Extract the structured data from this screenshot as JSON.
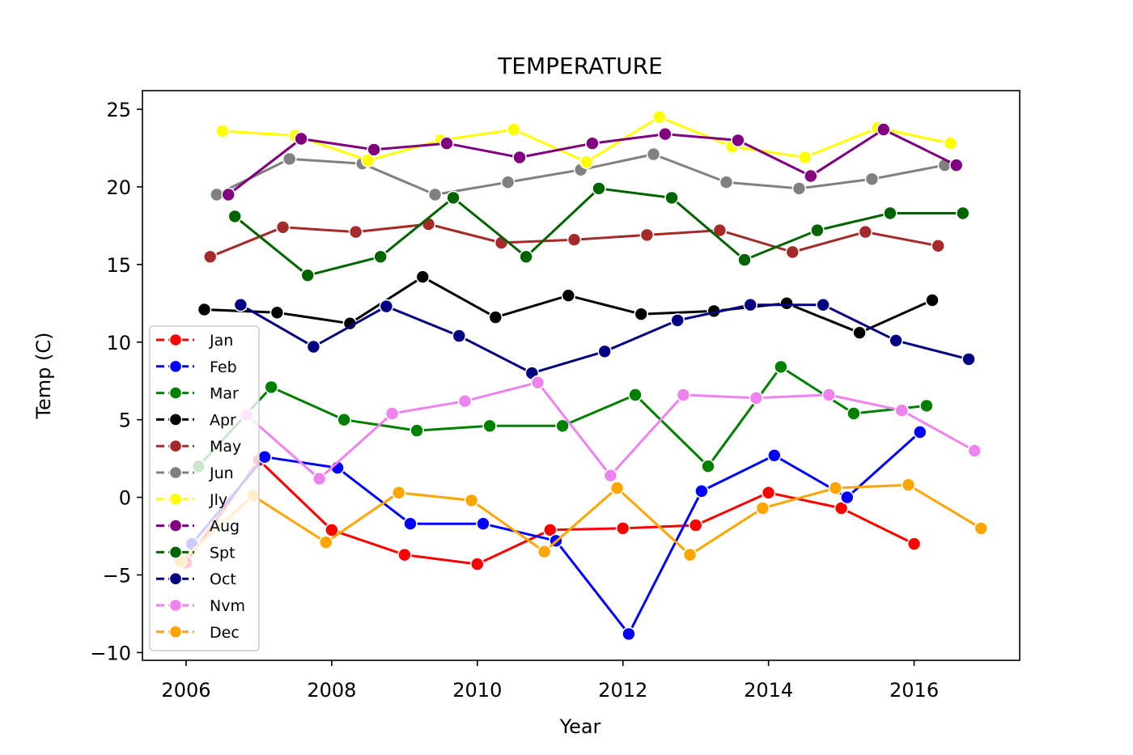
{
  "chart_data": {
    "type": "line",
    "title": "TEMPERATURE",
    "xlabel": "Year",
    "ylabel": "Temp (C)",
    "xlim": [
      2005.4,
      2017.45
    ],
    "ylim": [
      -10.5,
      26.2
    ],
    "xticks": [
      2006,
      2008,
      2010,
      2012,
      2014,
      2016
    ],
    "yticks": [
      -10,
      -5,
      0,
      5,
      10,
      15,
      20,
      25
    ],
    "ytick_labels": [
      "−10",
      "−5",
      "0",
      "5",
      "10",
      "15",
      "20",
      "25"
    ],
    "grid": false,
    "legend_position": "lower-left",
    "series": [
      {
        "name": "Jan",
        "color": "#ff0000",
        "x": [
          2006.0,
          2007.0,
          2008.0,
          2009.0,
          2010.0,
          2011.0,
          2012.0,
          2013.0,
          2014.0,
          2015.0,
          2016.0
        ],
        "y": [
          -4.2,
          2.4,
          -2.1,
          -3.7,
          -4.3,
          -2.1,
          -2.0,
          -1.8,
          0.3,
          -0.7,
          -3.0
        ]
      },
      {
        "name": "Feb",
        "color": "#0000ff",
        "x": [
          2006.08,
          2007.08,
          2008.08,
          2009.08,
          2010.08,
          2011.08,
          2012.08,
          2013.08,
          2014.08,
          2015.08,
          2016.08
        ],
        "y": [
          -3.0,
          2.6,
          1.9,
          -1.7,
          -1.7,
          -2.8,
          -8.8,
          0.4,
          2.7,
          0.0,
          4.2
        ]
      },
      {
        "name": "Mar",
        "color": "#008000",
        "x": [
          2006.17,
          2007.17,
          2008.17,
          2009.17,
          2010.17,
          2011.17,
          2012.17,
          2013.17,
          2014.17,
          2015.17,
          2016.17
        ],
        "y": [
          2.0,
          7.1,
          5.0,
          4.3,
          4.6,
          4.6,
          6.6,
          2.0,
          8.4,
          5.4,
          5.9
        ]
      },
      {
        "name": "Apr",
        "color": "#000000",
        "x": [
          2006.25,
          2007.25,
          2008.25,
          2009.25,
          2010.25,
          2011.25,
          2012.25,
          2013.25,
          2014.25,
          2015.25,
          2016.25
        ],
        "y": [
          12.1,
          11.9,
          11.2,
          14.2,
          11.6,
          13.0,
          11.8,
          12.0,
          12.5,
          10.6,
          12.7
        ]
      },
      {
        "name": "May",
        "color": "#a52a2a",
        "x": [
          2006.33,
          2007.33,
          2008.33,
          2009.33,
          2010.33,
          2011.33,
          2012.33,
          2013.33,
          2014.33,
          2015.33,
          2016.33
        ],
        "y": [
          15.5,
          17.4,
          17.1,
          17.6,
          16.4,
          16.6,
          16.9,
          17.2,
          15.8,
          17.1,
          16.2
        ]
      },
      {
        "name": "Jun",
        "color": "#808080",
        "x": [
          2006.42,
          2007.42,
          2008.42,
          2009.42,
          2010.42,
          2011.42,
          2012.42,
          2013.42,
          2014.42,
          2015.42,
          2016.42
        ],
        "y": [
          19.5,
          21.8,
          21.5,
          19.5,
          20.3,
          21.1,
          22.1,
          20.3,
          19.9,
          20.5,
          21.4
        ]
      },
      {
        "name": "Jly",
        "color": "#ffff00",
        "x": [
          2006.5,
          2007.5,
          2008.5,
          2009.5,
          2010.5,
          2011.5,
          2012.5,
          2013.5,
          2014.5,
          2015.5,
          2016.5
        ],
        "y": [
          23.6,
          23.3,
          21.7,
          23.0,
          23.7,
          21.6,
          24.5,
          22.6,
          21.9,
          23.8,
          22.8
        ]
      },
      {
        "name": "Aug",
        "color": "#800080",
        "x": [
          2006.58,
          2007.58,
          2008.58,
          2009.58,
          2010.58,
          2011.58,
          2012.58,
          2013.58,
          2014.58,
          2015.58,
          2016.58
        ],
        "y": [
          19.5,
          23.1,
          22.4,
          22.8,
          21.9,
          22.8,
          23.4,
          23.0,
          20.7,
          23.7,
          21.4
        ]
      },
      {
        "name": "Spt",
        "color": "#006400",
        "x": [
          2006.67,
          2007.67,
          2008.67,
          2009.67,
          2010.67,
          2011.67,
          2012.67,
          2013.67,
          2014.67,
          2015.67,
          2016.67
        ],
        "y": [
          18.1,
          14.3,
          15.5,
          19.3,
          15.5,
          19.9,
          19.3,
          15.3,
          17.2,
          18.3,
          18.3
        ]
      },
      {
        "name": "Oct",
        "color": "#000080",
        "x": [
          2006.75,
          2007.75,
          2008.75,
          2009.75,
          2010.75,
          2011.75,
          2012.75,
          2013.75,
          2014.75,
          2015.75,
          2016.75
        ],
        "y": [
          12.4,
          9.7,
          12.3,
          10.4,
          8.0,
          9.4,
          11.4,
          12.4,
          12.4,
          10.1,
          8.9
        ]
      },
      {
        "name": "Nvm",
        "color": "#ee82ee",
        "x": [
          2006.83,
          2007.83,
          2008.83,
          2009.83,
          2010.83,
          2011.83,
          2012.83,
          2013.83,
          2014.83,
          2015.83,
          2016.83
        ],
        "y": [
          5.3,
          1.2,
          5.4,
          6.2,
          7.4,
          1.4,
          6.6,
          6.4,
          6.6,
          5.6,
          3.0
        ]
      },
      {
        "name": "Dec",
        "color": "#ffa500",
        "x": [
          2005.92,
          2006.92,
          2007.92,
          2008.92,
          2009.92,
          2010.92,
          2011.92,
          2012.92,
          2013.92,
          2014.92,
          2015.92,
          2016.92
        ],
        "y": [
          -4.1,
          0.1,
          -2.9,
          0.3,
          -0.2,
          -3.5,
          0.6,
          -3.7,
          -0.7,
          0.6,
          0.8,
          -2.0
        ]
      }
    ]
  }
}
